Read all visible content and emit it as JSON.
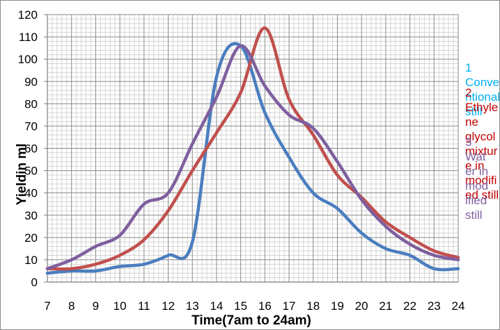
{
  "chart_data": {
    "type": "line",
    "title": "",
    "xlabel": "Time(7am to 24am)",
    "ylabel": "Yieldin ml",
    "x": [
      7,
      8,
      9,
      10,
      11,
      12,
      13,
      14,
      15,
      16,
      17,
      18,
      19,
      20,
      21,
      22,
      23,
      24
    ],
    "xlim": [
      7,
      24
    ],
    "ylim": [
      0,
      120
    ],
    "yticks": [
      0,
      10,
      20,
      30,
      40,
      50,
      60,
      70,
      80,
      90,
      100,
      110,
      120
    ],
    "grid": true,
    "legend_position": "right",
    "series": [
      {
        "name": "1 Conventional still",
        "color": "#4a7ebf",
        "values": [
          4,
          5,
          5,
          7,
          8,
          12,
          18,
          92,
          106,
          76,
          56,
          40,
          33,
          22,
          15,
          12,
          6,
          6
        ]
      },
      {
        "name": "2 Ethylene glycol mixture in modified still",
        "color": "#c0504d",
        "values": [
          6,
          6,
          8,
          12,
          19,
          32,
          50,
          67,
          85,
          114,
          82,
          66,
          48,
          38,
          27,
          20,
          14,
          11
        ]
      },
      {
        "name": "3 Water in modified still",
        "color": "#7f5f9f",
        "values": [
          6,
          10,
          16,
          21,
          35,
          40,
          62,
          83,
          106,
          88,
          75,
          69,
          54,
          37,
          25,
          17,
          12,
          10
        ]
      }
    ]
  },
  "legend": {
    "entries": [
      {
        "color": "#00b0f0",
        "lines": [
          "1",
          "Conve",
          "ntional",
          "still"
        ]
      },
      {
        "color": "#c00000",
        "lines": [
          "2",
          "Ethyle",
          "ne",
          "glycol",
          "mixtur",
          "e in",
          "modifi",
          "ed still"
        ]
      },
      {
        "color": "#7f5f9f",
        "lines": [
          "3",
          "Wat",
          "er in",
          "mod",
          "ified",
          "still"
        ]
      }
    ]
  }
}
